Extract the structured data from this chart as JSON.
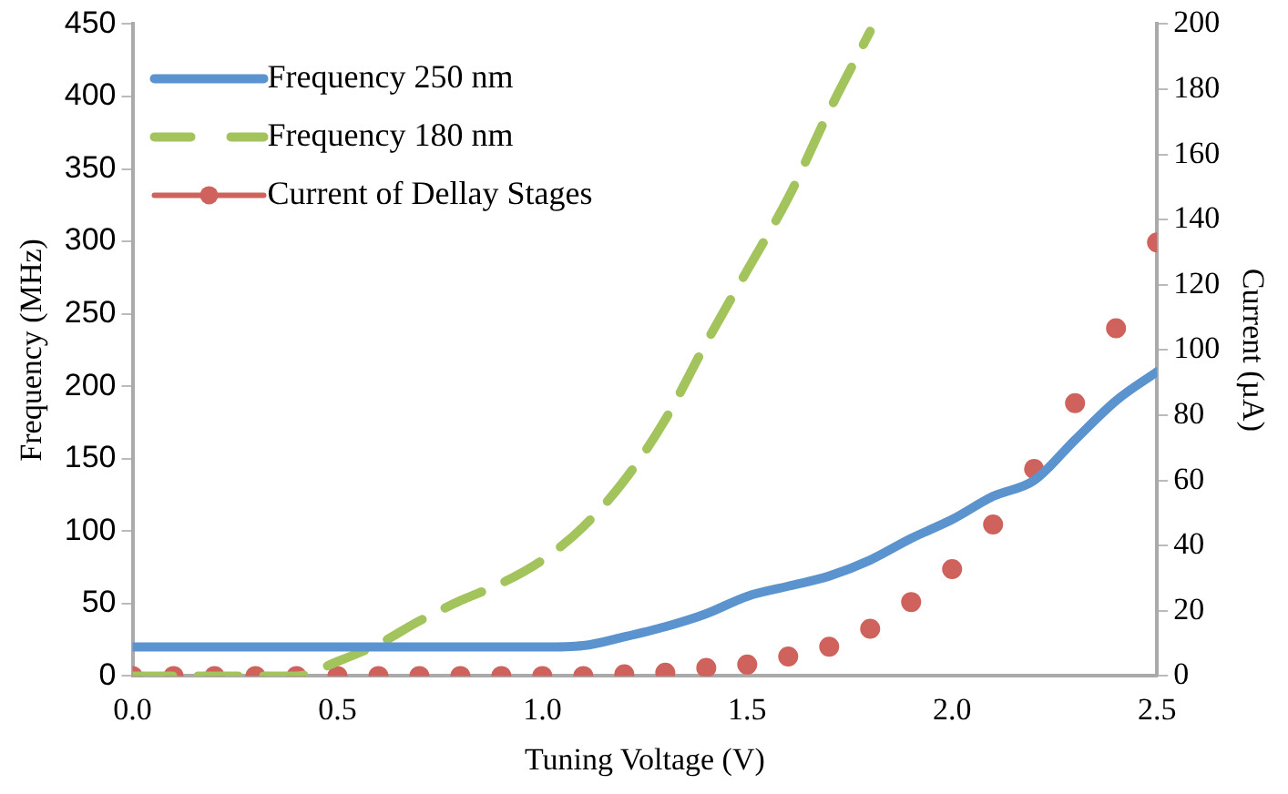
{
  "chart_data": {
    "type": "line",
    "xlabel": "Tuning Voltage (V)",
    "ylabel": "Frequency (MHz)",
    "y2label": "Current (µA)",
    "x": [
      0,
      0.1,
      0.2,
      0.3,
      0.4,
      0.5,
      0.6,
      0.7,
      0.8,
      0.9,
      1.0,
      1.1,
      1.2,
      1.3,
      1.4,
      1.5,
      1.6,
      1.7,
      1.8,
      1.9,
      2.0,
      2.1,
      2.2,
      2.3,
      2.4,
      2.5
    ],
    "xlim": [
      0,
      2.5
    ],
    "xticks": [
      {
        "value": 0,
        "label": "0.0"
      },
      {
        "value": 0.5,
        "label": "0.5"
      },
      {
        "value": 1,
        "label": "1.0"
      },
      {
        "value": 1.5,
        "label": "1.5"
      },
      {
        "value": 2,
        "label": "2.0"
      },
      {
        "value": 2.5,
        "label": "2.5"
      }
    ],
    "ylim": [
      0,
      450
    ],
    "yticks": [
      0,
      50,
      100,
      150,
      200,
      250,
      300,
      350,
      400,
      450
    ],
    "y2lim": [
      0,
      200
    ],
    "y2ticks": [
      0,
      20,
      40,
      60,
      80,
      100,
      120,
      140,
      160,
      180,
      200
    ],
    "legend": "top left",
    "grid": false,
    "series": [
      {
        "name": "Frequency 250 nm",
        "color": "#5b93cf",
        "line_style": "solid",
        "marker": "none",
        "values": [
          20,
          20,
          20,
          20,
          20,
          20,
          20,
          20,
          20,
          20,
          20,
          21,
          27,
          34,
          43,
          55,
          62,
          69,
          80,
          95,
          108,
          124,
          135,
          163,
          190,
          210
        ]
      },
      {
        "name": "Frequency 180 nm",
        "color": "#a3c45c",
        "line_style": "dashed",
        "marker": "none",
        "x": [
          0,
          0.1,
          0.2,
          0.3,
          0.4,
          0.5,
          0.6,
          0.7,
          0.8,
          0.9,
          1.0,
          1.1,
          1.2,
          1.3,
          1.4,
          1.5,
          1.6,
          1.7,
          1.8
        ],
        "values": [
          0,
          0,
          0,
          0,
          0,
          10,
          22,
          38,
          52,
          64,
          80,
          103,
          135,
          177,
          230,
          280,
          330,
          390,
          445
        ]
      },
      {
        "name": "Current of Dellay Stages",
        "type": "scatter",
        "axis": "y2",
        "color": "#cf625c",
        "marker": "circle",
        "values": [
          0,
          0,
          0,
          0,
          0,
          0,
          0,
          0,
          0,
          0,
          0,
          0,
          0.5,
          1,
          2.5,
          3.5,
          6,
          9,
          14.5,
          22.7,
          32.8,
          46.5,
          63.5,
          83.7,
          106.7,
          133
        ]
      }
    ]
  }
}
